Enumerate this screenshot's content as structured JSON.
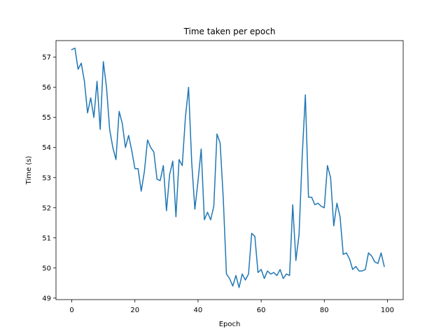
{
  "chart_data": {
    "type": "line",
    "title": "Time taken per epoch",
    "xlabel": "Epoch",
    "ylabel": "Time (s)",
    "xlim": [
      -5,
      105
    ],
    "ylim": [
      48.95,
      57.55
    ],
    "xticks": [
      0,
      20,
      40,
      60,
      80,
      100
    ],
    "yticks": [
      49,
      50,
      51,
      52,
      53,
      54,
      55,
      56,
      57
    ],
    "grid": false,
    "legend": "none",
    "line_color": "#1f77b4",
    "series": [
      {
        "x": [
          0,
          1,
          2,
          3,
          4,
          5,
          6,
          7,
          8,
          9,
          10,
          11,
          12,
          13,
          14,
          15,
          16,
          17,
          18,
          19,
          20,
          21,
          22,
          23,
          24,
          25,
          26,
          27,
          28,
          29,
          30,
          31,
          32,
          33,
          34,
          35,
          36,
          37,
          38,
          39,
          40,
          41,
          42,
          43,
          44,
          45,
          46,
          47,
          48,
          49,
          50,
          51,
          52,
          53,
          54,
          55,
          56,
          57,
          58,
          59,
          60,
          61,
          62,
          63,
          64,
          65,
          66,
          67,
          68,
          69,
          70,
          71,
          72,
          73,
          74,
          75,
          76,
          77,
          78,
          79,
          80,
          81,
          82,
          83,
          84,
          85,
          86,
          87,
          88,
          89,
          90,
          91,
          92,
          93,
          94,
          95,
          96,
          97,
          98,
          99
        ],
        "values": [
          57.25,
          57.3,
          56.6,
          56.8,
          56.2,
          55.15,
          55.65,
          55.0,
          56.2,
          54.6,
          56.85,
          56.0,
          54.6,
          54.0,
          53.6,
          55.2,
          54.8,
          54.0,
          54.4,
          53.9,
          53.3,
          53.3,
          52.55,
          53.2,
          54.25,
          54.0,
          53.85,
          52.95,
          52.9,
          53.4,
          51.9,
          53.1,
          53.55,
          51.7,
          53.6,
          53.4,
          55.0,
          56.0,
          53.5,
          51.95,
          52.9,
          53.95,
          51.6,
          51.85,
          51.6,
          52.05,
          54.45,
          54.15,
          52.3,
          49.8,
          49.65,
          49.4,
          49.75,
          49.35,
          49.8,
          49.6,
          49.8,
          51.15,
          51.05,
          49.85,
          49.95,
          49.65,
          49.9,
          49.8,
          49.85,
          49.75,
          49.95,
          49.65,
          49.8,
          49.75,
          52.1,
          50.25,
          51.1,
          53.7,
          55.75,
          52.35,
          52.35,
          52.1,
          52.15,
          52.05,
          52.0,
          53.4,
          53.0,
          51.4,
          52.15,
          51.7,
          50.45,
          50.5,
          50.3,
          49.95,
          50.05,
          49.9,
          49.9,
          49.95,
          50.5,
          50.4,
          50.2,
          50.15,
          50.5,
          50.05
        ]
      }
    ]
  }
}
